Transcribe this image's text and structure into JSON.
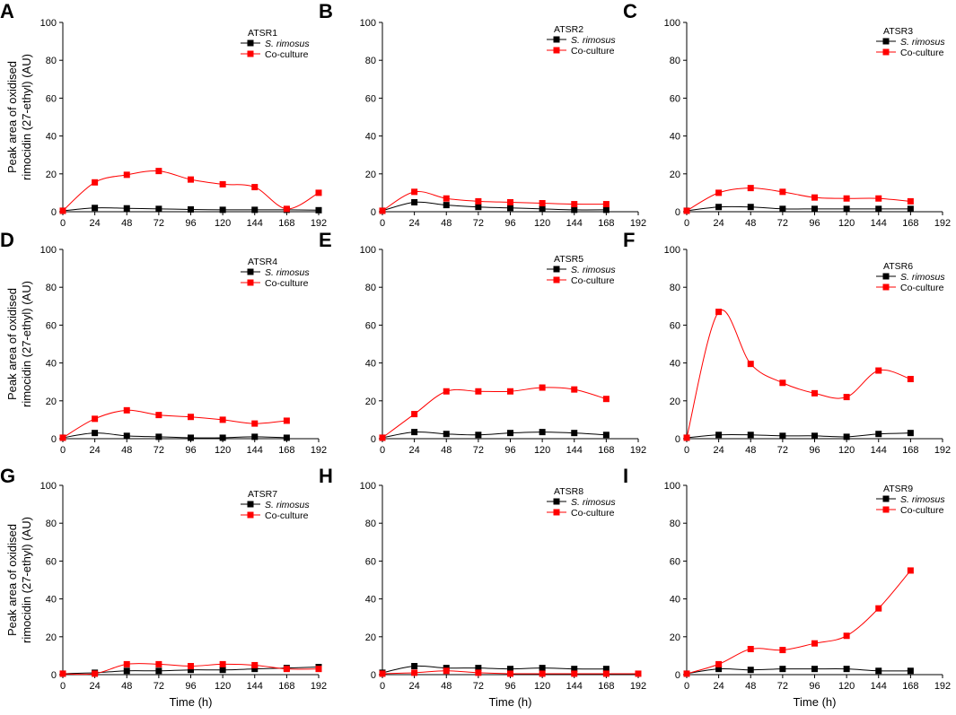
{
  "figure": {
    "ylabel": [
      "Peak area of oxidised",
      "rimocidin (27-ethyl) (AU)"
    ],
    "xlabel": "Time (h)",
    "series_colors": {
      "S. rimosus": "#000000",
      "Co-culture": "#ff0000"
    }
  },
  "chart_data": [
    {
      "type": "line",
      "panel": "A",
      "title": "ATSR1",
      "legend_position": "top-right",
      "x_ticks": [
        0,
        24,
        48,
        72,
        96,
        120,
        144,
        168,
        192
      ],
      "y_ticks": [
        0,
        20,
        40,
        60,
        80,
        100
      ],
      "xlim": [
        0,
        192
      ],
      "ylim": [
        0,
        100
      ],
      "xlabel": "",
      "ylabel": "Peak area of oxidised rimocidin (27-ethyl) (AU)",
      "series": [
        {
          "name": "S. rimosus",
          "color": "#000000",
          "x": [
            0,
            24,
            48,
            72,
            96,
            120,
            144,
            168,
            192
          ],
          "values": [
            0.5,
            2,
            1.8,
            1.5,
            1.2,
            1,
            1,
            1,
            0.8
          ]
        },
        {
          "name": "Co-culture",
          "color": "#ff0000",
          "x": [
            0,
            24,
            48,
            72,
            96,
            120,
            144,
            168,
            192
          ],
          "values": [
            0.5,
            15.5,
            19.5,
            21.5,
            17,
            14.5,
            13,
            1.5,
            10
          ]
        }
      ]
    },
    {
      "type": "line",
      "panel": "B",
      "title": "ATSR2",
      "legend_position": "top-right",
      "x_ticks": [
        0,
        24,
        48,
        72,
        96,
        120,
        144,
        168,
        192
      ],
      "y_ticks": [
        0,
        20,
        40,
        60,
        80,
        100
      ],
      "xlim": [
        0,
        192
      ],
      "ylim": [
        0,
        100
      ],
      "xlabel": "",
      "ylabel": "",
      "series": [
        {
          "name": "S. rimosus",
          "color": "#000000",
          "x": [
            0,
            24,
            48,
            72,
            96,
            120,
            144,
            168
          ],
          "values": [
            0.5,
            5,
            3.5,
            2.5,
            2,
            1.5,
            1,
            1
          ]
        },
        {
          "name": "Co-culture",
          "color": "#ff0000",
          "x": [
            0,
            24,
            48,
            72,
            96,
            120,
            144,
            168
          ],
          "values": [
            0.5,
            10.5,
            7,
            5.5,
            5,
            4.5,
            4,
            4
          ]
        }
      ]
    },
    {
      "type": "line",
      "panel": "C",
      "title": "ATSR3",
      "legend_position": "top-right",
      "x_ticks": [
        0,
        24,
        48,
        72,
        96,
        120,
        144,
        168,
        192
      ],
      "y_ticks": [
        0,
        20,
        40,
        60,
        80,
        100
      ],
      "xlim": [
        0,
        192
      ],
      "ylim": [
        0,
        100
      ],
      "xlabel": "",
      "ylabel": "",
      "series": [
        {
          "name": "S. rimosus",
          "color": "#000000",
          "x": [
            0,
            24,
            48,
            72,
            96,
            120,
            144,
            168
          ],
          "values": [
            0.5,
            2.5,
            2.5,
            1.5,
            1.5,
            1.5,
            1.5,
            1.5
          ]
        },
        {
          "name": "Co-culture",
          "color": "#ff0000",
          "x": [
            0,
            24,
            48,
            72,
            96,
            120,
            144,
            168
          ],
          "values": [
            0.5,
            10,
            12.5,
            10.5,
            7.5,
            7,
            7,
            5.5
          ]
        }
      ]
    },
    {
      "type": "line",
      "panel": "D",
      "title": "ATSR4",
      "legend_position": "top-right",
      "x_ticks": [
        0,
        24,
        48,
        72,
        96,
        120,
        144,
        168,
        192
      ],
      "y_ticks": [
        0,
        20,
        40,
        60,
        80,
        100
      ],
      "xlim": [
        0,
        192
      ],
      "ylim": [
        0,
        100
      ],
      "xlabel": "",
      "ylabel": "Peak area of oxidised rimocidin (27-ethyl) (AU)",
      "series": [
        {
          "name": "S. rimosus",
          "color": "#000000",
          "x": [
            0,
            24,
            48,
            72,
            96,
            120,
            144,
            168
          ],
          "values": [
            0.5,
            3,
            1.5,
            1,
            0.5,
            0.5,
            1,
            0.5
          ]
        },
        {
          "name": "Co-culture",
          "color": "#ff0000",
          "x": [
            0,
            24,
            48,
            72,
            96,
            120,
            144,
            168
          ],
          "values": [
            0.5,
            10.5,
            15,
            12.5,
            11.5,
            10,
            8,
            9.5
          ]
        }
      ]
    },
    {
      "type": "line",
      "panel": "E",
      "title": "ATSR5",
      "legend_position": "top-right",
      "x_ticks": [
        0,
        24,
        48,
        72,
        96,
        120,
        144,
        168,
        192
      ],
      "y_ticks": [
        0,
        20,
        40,
        60,
        80,
        100
      ],
      "xlim": [
        0,
        192
      ],
      "ylim": [
        0,
        100
      ],
      "xlabel": "",
      "ylabel": "",
      "series": [
        {
          "name": "S. rimosus",
          "color": "#000000",
          "x": [
            0,
            24,
            48,
            72,
            96,
            120,
            144,
            168
          ],
          "values": [
            0.5,
            3.5,
            2.5,
            2,
            3,
            3.5,
            3,
            2
          ]
        },
        {
          "name": "Co-culture",
          "color": "#ff0000",
          "x": [
            0,
            24,
            48,
            72,
            96,
            120,
            144,
            168
          ],
          "values": [
            0.5,
            13,
            25,
            25,
            25,
            27,
            26,
            21
          ]
        }
      ]
    },
    {
      "type": "line",
      "panel": "F",
      "title": "ATSR6",
      "legend_position": "top-right",
      "x_ticks": [
        0,
        24,
        48,
        72,
        96,
        120,
        144,
        168,
        192
      ],
      "y_ticks": [
        0,
        20,
        40,
        60,
        80,
        100
      ],
      "xlim": [
        0,
        192
      ],
      "ylim": [
        0,
        100
      ],
      "xlabel": "",
      "ylabel": "",
      "series": [
        {
          "name": "S. rimosus",
          "color": "#000000",
          "x": [
            0,
            24,
            48,
            72,
            96,
            120,
            144,
            168
          ],
          "values": [
            0.5,
            2,
            2,
            1.5,
            1.5,
            1,
            2.5,
            3
          ]
        },
        {
          "name": "Co-culture",
          "color": "#ff0000",
          "x": [
            0,
            24,
            48,
            72,
            96,
            120,
            144,
            168
          ],
          "values": [
            0.5,
            67,
            39.5,
            29.5,
            24,
            22,
            36,
            31.5
          ]
        }
      ]
    },
    {
      "type": "line",
      "panel": "G",
      "title": "ATSR7",
      "legend_position": "top-right",
      "x_ticks": [
        0,
        24,
        48,
        72,
        96,
        120,
        144,
        168,
        192
      ],
      "y_ticks": [
        0,
        20,
        40,
        60,
        80,
        100
      ],
      "xlim": [
        0,
        192
      ],
      "ylim": [
        0,
        100
      ],
      "xlabel": "Time (h)",
      "ylabel": "Peak area of oxidised rimocidin (27-ethyl) (AU)",
      "series": [
        {
          "name": "S. rimosus",
          "color": "#000000",
          "x": [
            0,
            24,
            48,
            72,
            96,
            120,
            144,
            168,
            192
          ],
          "values": [
            0.5,
            1,
            2,
            2,
            2.5,
            2.5,
            3,
            3.5,
            4
          ]
        },
        {
          "name": "Co-culture",
          "color": "#ff0000",
          "x": [
            0,
            24,
            48,
            72,
            96,
            120,
            144,
            168,
            192
          ],
          "values": [
            0.5,
            0.5,
            5.5,
            5.5,
            4.5,
            5.5,
            5,
            3,
            3
          ]
        }
      ]
    },
    {
      "type": "line",
      "panel": "H",
      "title": "ATSR8",
      "legend_position": "top-right",
      "x_ticks": [
        0,
        24,
        48,
        72,
        96,
        120,
        144,
        168,
        192
      ],
      "y_ticks": [
        0,
        20,
        40,
        60,
        80,
        100
      ],
      "xlim": [
        0,
        192
      ],
      "ylim": [
        0,
        100
      ],
      "xlabel": "Time (h)",
      "ylabel": "",
      "series": [
        {
          "name": "S. rimosus",
          "color": "#000000",
          "x": [
            0,
            24,
            48,
            72,
            96,
            120,
            144,
            168
          ],
          "values": [
            1,
            4.5,
            3.5,
            3.5,
            3,
            3.5,
            3,
            3
          ]
        },
        {
          "name": "Co-culture",
          "color": "#ff0000",
          "x": [
            0,
            24,
            48,
            72,
            96,
            120,
            144,
            168,
            192
          ],
          "values": [
            0.5,
            1,
            2,
            1,
            0.5,
            0.5,
            0.5,
            0.5,
            0.5
          ]
        }
      ]
    },
    {
      "type": "line",
      "panel": "I",
      "title": "ATSR9",
      "legend_position": "top-right",
      "x_ticks": [
        0,
        24,
        48,
        72,
        96,
        120,
        144,
        168,
        192
      ],
      "y_ticks": [
        0,
        20,
        40,
        60,
        80,
        100
      ],
      "xlim": [
        0,
        192
      ],
      "ylim": [
        0,
        100
      ],
      "xlabel": "Time (h)",
      "ylabel": "",
      "series": [
        {
          "name": "S. rimosus",
          "color": "#000000",
          "x": [
            0,
            24,
            48,
            72,
            96,
            120,
            144,
            168
          ],
          "values": [
            0.5,
            3,
            2.5,
            3,
            3,
            3,
            2,
            2
          ]
        },
        {
          "name": "Co-culture",
          "color": "#ff0000",
          "x": [
            0,
            24,
            48,
            72,
            96,
            120,
            144,
            168
          ],
          "values": [
            0.5,
            5.5,
            13.5,
            13,
            16.5,
            20.5,
            35,
            55
          ]
        }
      ]
    }
  ]
}
